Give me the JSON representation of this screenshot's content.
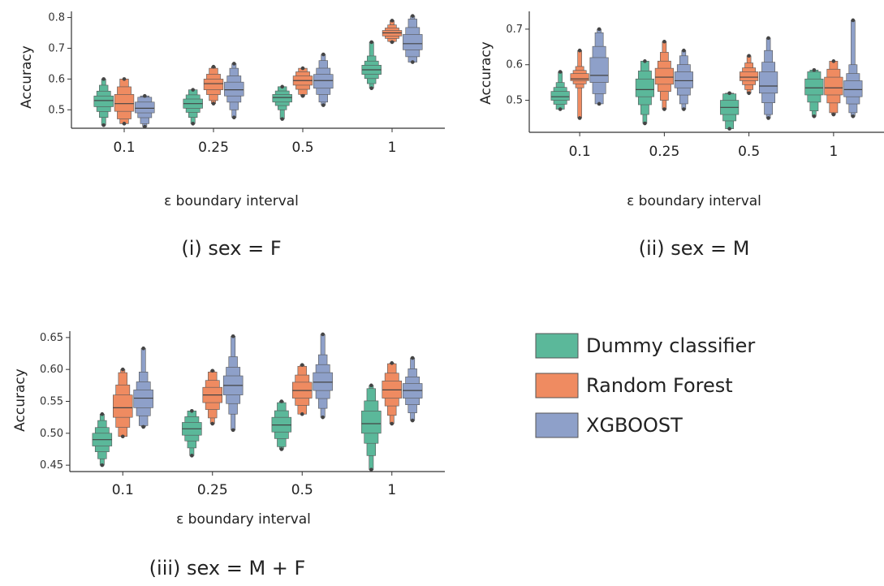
{
  "colors": {
    "dummy": "#5bb89a",
    "rf": "#ef8b61",
    "xgb": "#8ea0c9",
    "axis": "#333333"
  },
  "legend": [
    {
      "label": "Dummy classifier",
      "color": "#5bb89a"
    },
    {
      "label": "Random Forest",
      "color": "#ef8b61"
    },
    {
      "label": "XGBOOST",
      "color": "#8ea0c9"
    }
  ],
  "chart_data": [
    {
      "type": "boxen",
      "caption": "(i) sex = F",
      "xlabel": "ε boundary interval",
      "ylabel": "Accuracy",
      "categories": [
        "0.1",
        "0.25",
        "0.5",
        "1"
      ],
      "ylim": [
        0.44,
        0.82
      ],
      "yticks": [
        "0.5",
        "0.6",
        "0.7",
        "0.8"
      ],
      "ytick_values": [
        0.5,
        0.6,
        0.7,
        0.8
      ],
      "series": [
        {
          "name": "Dummy classifier",
          "boxes": [
            {
              "median": 0.53,
              "q1": 0.51,
              "q3": 0.545,
              "min": 0.45,
              "max": 0.6
            },
            {
              "median": 0.52,
              "q1": 0.505,
              "q3": 0.535,
              "min": 0.455,
              "max": 0.565
            },
            {
              "median": 0.54,
              "q1": 0.525,
              "q3": 0.55,
              "min": 0.47,
              "max": 0.575
            },
            {
              "median": 0.63,
              "q1": 0.615,
              "q3": 0.645,
              "min": 0.57,
              "max": 0.72
            }
          ]
        },
        {
          "name": "Random Forest",
          "boxes": [
            {
              "median": 0.52,
              "q1": 0.495,
              "q3": 0.55,
              "min": 0.455,
              "max": 0.6
            },
            {
              "median": 0.585,
              "q1": 0.565,
              "q3": 0.6,
              "min": 0.52,
              "max": 0.64
            },
            {
              "median": 0.595,
              "q1": 0.58,
              "q3": 0.61,
              "min": 0.545,
              "max": 0.635
            },
            {
              "median": 0.75,
              "q1": 0.74,
              "q3": 0.758,
              "min": 0.72,
              "max": 0.79
            }
          ]
        },
        {
          "name": "XGBOOST",
          "boxes": [
            {
              "median": 0.505,
              "q1": 0.49,
              "q3": 0.525,
              "min": 0.445,
              "max": 0.545
            },
            {
              "median": 0.565,
              "q1": 0.545,
              "q3": 0.59,
              "min": 0.475,
              "max": 0.65
            },
            {
              "median": 0.595,
              "q1": 0.57,
              "q3": 0.615,
              "min": 0.515,
              "max": 0.68
            },
            {
              "median": 0.715,
              "q1": 0.695,
              "q3": 0.745,
              "min": 0.655,
              "max": 0.805
            }
          ]
        }
      ]
    },
    {
      "type": "boxen",
      "caption": "(ii) sex = M",
      "xlabel": "ε boundary interval",
      "ylabel": "Accuracy",
      "categories": [
        "0.1",
        "0.25",
        "0.5",
        "1"
      ],
      "ylim": [
        0.41,
        0.75
      ],
      "yticks": [
        "0.5",
        "0.6",
        "0.7"
      ],
      "ytick_values": [
        0.5,
        0.6,
        0.7
      ],
      "series": [
        {
          "name": "Dummy classifier",
          "boxes": [
            {
              "median": 0.51,
              "q1": 0.5,
              "q3": 0.525,
              "min": 0.475,
              "max": 0.58
            },
            {
              "median": 0.53,
              "q1": 0.51,
              "q3": 0.56,
              "min": 0.435,
              "max": 0.61
            },
            {
              "median": 0.48,
              "q1": 0.46,
              "q3": 0.5,
              "min": 0.42,
              "max": 0.52
            },
            {
              "median": 0.535,
              "q1": 0.515,
              "q3": 0.56,
              "min": 0.455,
              "max": 0.585
            }
          ]
        },
        {
          "name": "Random Forest",
          "boxes": [
            {
              "median": 0.56,
              "q1": 0.555,
              "q3": 0.575,
              "min": 0.45,
              "max": 0.64
            },
            {
              "median": 0.565,
              "q1": 0.545,
              "q3": 0.59,
              "min": 0.475,
              "max": 0.665
            },
            {
              "median": 0.565,
              "q1": 0.555,
              "q3": 0.58,
              "min": 0.52,
              "max": 0.625
            },
            {
              "median": 0.535,
              "q1": 0.515,
              "q3": 0.565,
              "min": 0.46,
              "max": 0.61
            }
          ]
        },
        {
          "name": "XGBOOST",
          "boxes": [
            {
              "median": 0.57,
              "q1": 0.55,
              "q3": 0.62,
              "min": 0.49,
              "max": 0.7
            },
            {
              "median": 0.555,
              "q1": 0.535,
              "q3": 0.58,
              "min": 0.475,
              "max": 0.64
            },
            {
              "median": 0.54,
              "q1": 0.52,
              "q3": 0.58,
              "min": 0.45,
              "max": 0.675
            },
            {
              "median": 0.53,
              "q1": 0.51,
              "q3": 0.555,
              "min": 0.455,
              "max": 0.725
            }
          ]
        }
      ]
    },
    {
      "type": "boxen",
      "caption": "(iii) sex = M + F",
      "xlabel": "ε boundary interval",
      "ylabel": "Accuracy",
      "categories": [
        "0.1",
        "0.25",
        "0.5",
        "1"
      ],
      "ylim": [
        0.44,
        0.66
      ],
      "yticks": [
        "0.45",
        "0.50",
        "0.55",
        "0.60",
        "0.65"
      ],
      "ytick_values": [
        0.45,
        0.5,
        0.55,
        0.6,
        0.65
      ],
      "series": [
        {
          "name": "Dummy classifier",
          "boxes": [
            {
              "median": 0.49,
              "q1": 0.48,
              "q3": 0.5,
              "min": 0.45,
              "max": 0.53
            },
            {
              "median": 0.507,
              "q1": 0.497,
              "q3": 0.517,
              "min": 0.465,
              "max": 0.535
            },
            {
              "median": 0.513,
              "q1": 0.502,
              "q3": 0.525,
              "min": 0.475,
              "max": 0.55
            },
            {
              "median": 0.515,
              "q1": 0.5,
              "q3": 0.535,
              "min": 0.443,
              "max": 0.575
            }
          ]
        },
        {
          "name": "Random Forest",
          "boxes": [
            {
              "median": 0.54,
              "q1": 0.525,
              "q3": 0.56,
              "min": 0.495,
              "max": 0.6
            },
            {
              "median": 0.56,
              "q1": 0.548,
              "q3": 0.572,
              "min": 0.515,
              "max": 0.598
            },
            {
              "median": 0.567,
              "q1": 0.555,
              "q3": 0.58,
              "min": 0.53,
              "max": 0.607
            },
            {
              "median": 0.568,
              "q1": 0.555,
              "q3": 0.582,
              "min": 0.515,
              "max": 0.61
            }
          ]
        },
        {
          "name": "XGBOOST",
          "boxes": [
            {
              "median": 0.555,
              "q1": 0.54,
              "q3": 0.568,
              "min": 0.51,
              "max": 0.633
            },
            {
              "median": 0.575,
              "q1": 0.56,
              "q3": 0.59,
              "min": 0.505,
              "max": 0.652
            },
            {
              "median": 0.58,
              "q1": 0.567,
              "q3": 0.595,
              "min": 0.525,
              "max": 0.655
            },
            {
              "median": 0.567,
              "q1": 0.555,
              "q3": 0.578,
              "min": 0.52,
              "max": 0.618
            }
          ]
        }
      ]
    }
  ]
}
